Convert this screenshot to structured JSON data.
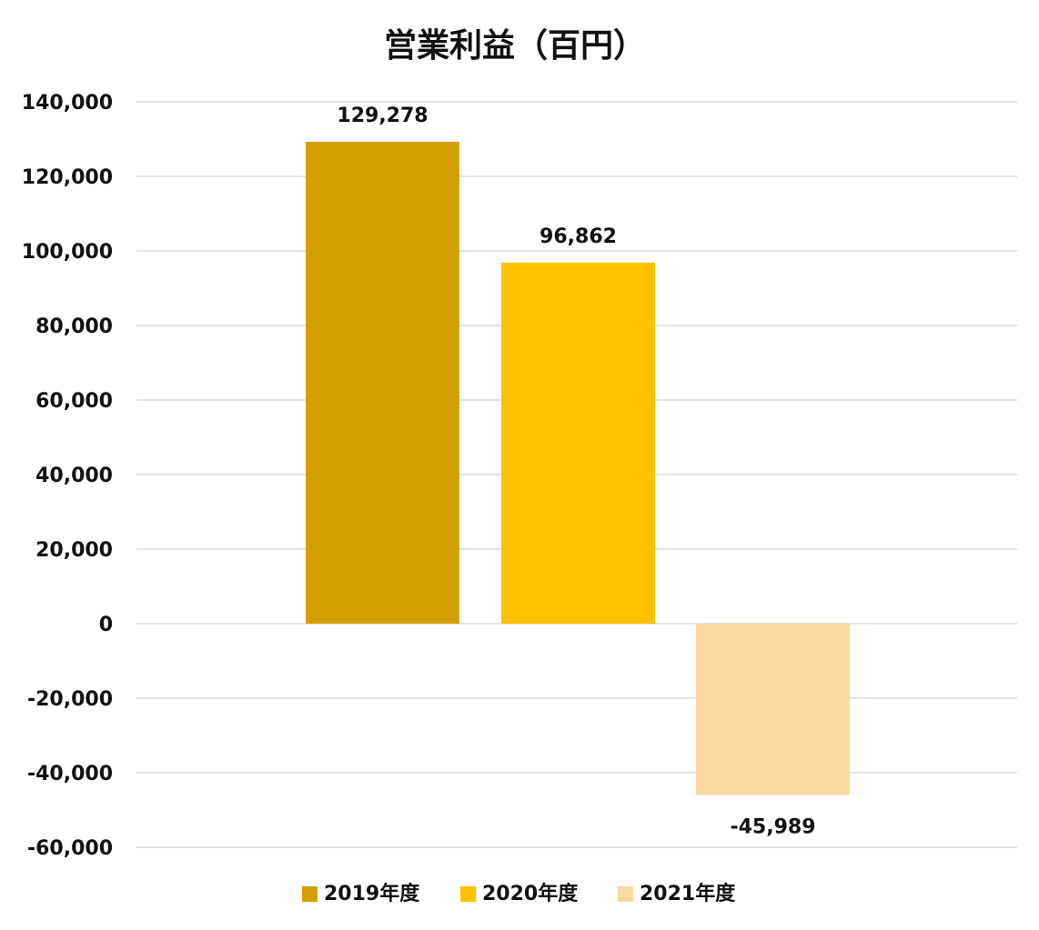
{
  "chart_data": {
    "type": "bar",
    "title": "営業利益（百円）",
    "categories": [
      "2019年度",
      "2020年度",
      "2021年度"
    ],
    "values": [
      129278,
      96862,
      -45989
    ],
    "value_labels": [
      "129,278",
      "96,862",
      "-45,989"
    ],
    "colors": [
      "#D4A000",
      "#FFC000",
      "#FDD9A2"
    ],
    "ylim": [
      -60000,
      140000
    ],
    "yticks": [
      140000,
      120000,
      100000,
      80000,
      60000,
      40000,
      20000,
      0,
      -20000,
      -40000,
      -60000
    ],
    "ytick_labels": [
      "140,000",
      "120,000",
      "100,000",
      "80,000",
      "60,000",
      "40,000",
      "20,000",
      "0",
      "-20,000",
      "-40,000",
      "-60,000"
    ],
    "grid": true,
    "legend": "bottom"
  }
}
